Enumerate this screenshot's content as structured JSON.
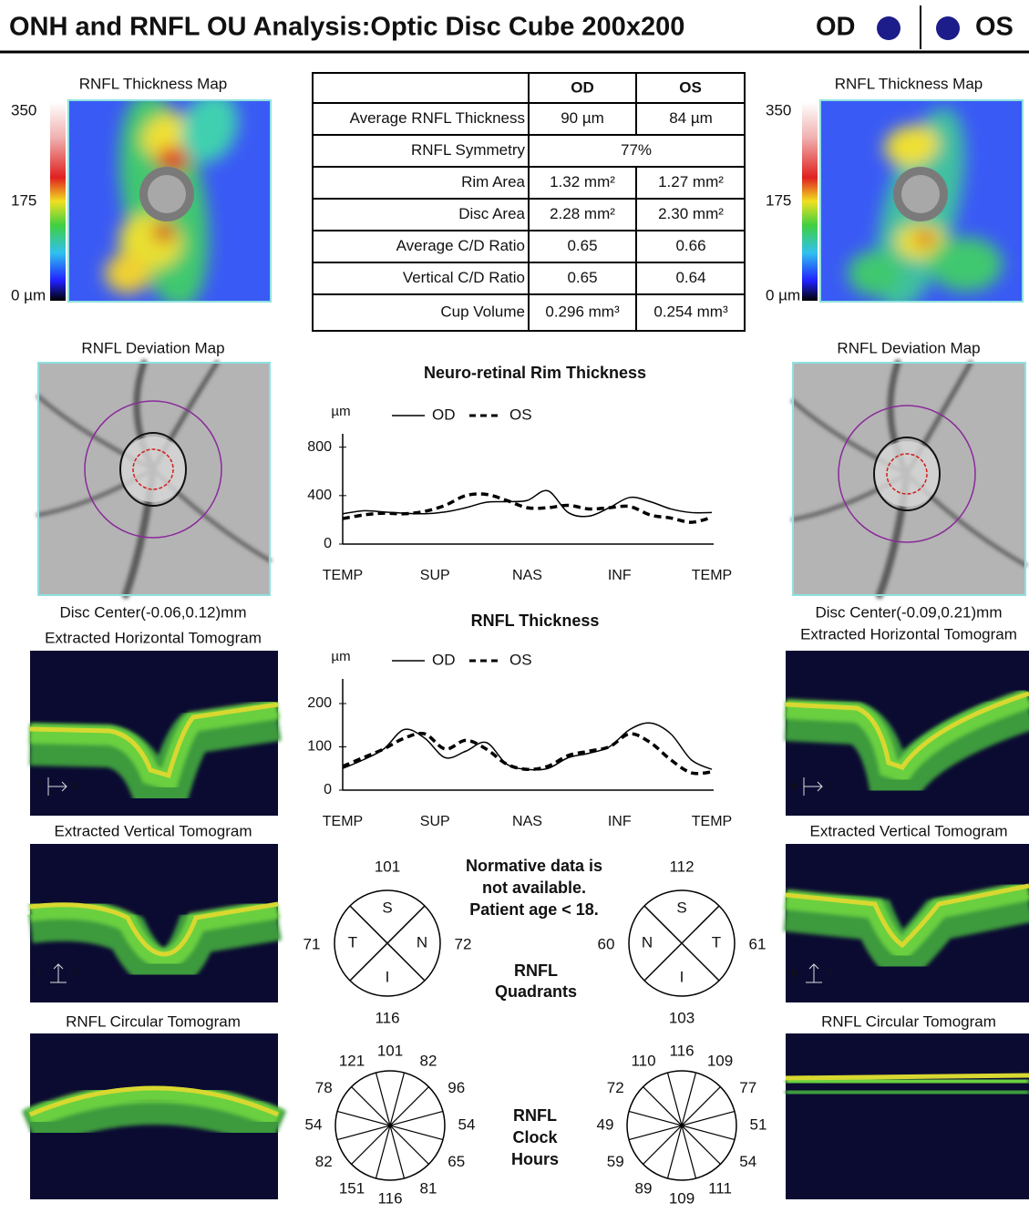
{
  "header": {
    "title": "ONH and RNFL OU Analysis:Optic Disc Cube 200x200",
    "od": "OD",
    "os": "OS"
  },
  "eyes": [
    {
      "thickness_map": {
        "title": "RNFL Thickness Map",
        "scale": [
          "350",
          "175",
          "0 µm"
        ]
      },
      "deviation_map": {
        "title": "RNFL Deviation Map"
      },
      "disc_center": "Disc Center(-0.06,0.12)mm",
      "horizontal_tomogram": {
        "title": "Extracted Horizontal Tomogram",
        "orientation": [
          "T",
          "N"
        ]
      },
      "vertical_tomogram": {
        "title": "Extracted Vertical Tomogram",
        "orientation": [
          "T",
          "N"
        ]
      },
      "circular_tomogram": {
        "title": "RNFL Circular Tomogram"
      }
    },
    {
      "thickness_map": {
        "title": "RNFL Thickness Map",
        "scale": [
          "350",
          "175",
          "0 µm"
        ]
      },
      "deviation_map": {
        "title": "RNFL Deviation Map"
      },
      "disc_center": "Disc Center(-0.09,0.21)mm",
      "horizontal_tomogram": {
        "title": "Extracted Horizontal Tomogram",
        "orientation": [
          "N",
          "T"
        ]
      },
      "vertical_tomogram": {
        "title": "Extracted Vertical Tomogram",
        "orientation": [
          "N",
          "T"
        ]
      },
      "circular_tomogram": {
        "title": "RNFL Circular Tomogram"
      }
    }
  ],
  "table": {
    "columns": [
      "OD",
      "OS"
    ],
    "rows": [
      [
        "Average RNFL Thickness",
        "90 µm",
        "84 µm"
      ],
      [
        "RNFL Symmetry",
        "77%"
      ],
      [
        "Rim Area",
        "1.32 mm²",
        "1.27 mm²"
      ],
      [
        "Disc Area",
        "2.28 mm²",
        "2.30 mm²"
      ],
      [
        "Average C/D Ratio",
        "0.65",
        "0.66"
      ],
      [
        "Vertical C/D Ratio",
        "0.65",
        "0.64"
      ],
      [
        "Cup Volume",
        "0.296 mm³",
        "0.254 mm³"
      ]
    ]
  },
  "rim_chart": {
    "type": "line",
    "title": "Neuro-retinal Rim Thickness",
    "y_unit": "µm",
    "legend": true,
    "x": [
      0,
      20,
      40,
      60,
      80,
      100,
      120,
      140,
      160,
      180,
      200,
      220,
      240,
      260,
      280,
      300,
      320,
      340,
      360
    ],
    "series": [
      {
        "name": "OD",
        "color": "#000000",
        "dashed": false,
        "values": [
          250,
          275,
          265,
          255,
          250,
          265,
          300,
          345,
          350,
          360,
          440,
          260,
          230,
          300,
          385,
          350,
          290,
          260,
          260
        ]
      },
      {
        "name": "OS",
        "color": "#000000",
        "dashed": true,
        "values": [
          210,
          240,
          255,
          250,
          270,
          320,
          400,
          410,
          360,
          300,
          300,
          320,
          290,
          300,
          310,
          240,
          215,
          180,
          220
        ]
      }
    ],
    "xlim": [
      0,
      360
    ],
    "xticks": [
      {
        "value": 0,
        "label": "TEMP"
      },
      {
        "value": 90,
        "label": "SUP"
      },
      {
        "value": 180,
        "label": "NAS"
      },
      {
        "value": 270,
        "label": "INF"
      },
      {
        "value": 360,
        "label": "TEMP"
      }
    ],
    "ylim": [
      0,
      850
    ],
    "yticks": [
      0,
      400,
      800
    ]
  },
  "rnfl_chart": {
    "type": "line",
    "title": "RNFL Thickness",
    "y_unit": "µm",
    "legend": true,
    "x": [
      0,
      20,
      40,
      60,
      80,
      100,
      120,
      140,
      160,
      180,
      200,
      220,
      240,
      260,
      280,
      300,
      320,
      340,
      360
    ],
    "series": [
      {
        "name": "OD",
        "color": "#000000",
        "dashed": false,
        "values": [
          50,
          70,
          95,
          140,
          120,
          75,
          90,
          110,
          60,
          48,
          50,
          75,
          85,
          100,
          140,
          155,
          130,
          70,
          48
        ]
      },
      {
        "name": "OS",
        "color": "#000000",
        "dashed": true,
        "values": [
          55,
          75,
          95,
          120,
          130,
          95,
          115,
          95,
          60,
          48,
          55,
          80,
          90,
          100,
          130,
          110,
          70,
          40,
          42
        ]
      }
    ],
    "xlim": [
      0,
      360
    ],
    "xticks": [
      {
        "value": 0,
        "label": "TEMP"
      },
      {
        "value": 90,
        "label": "SUP"
      },
      {
        "value": 180,
        "label": "NAS"
      },
      {
        "value": 270,
        "label": "INF"
      },
      {
        "value": 360,
        "label": "TEMP"
      }
    ],
    "ylim": [
      0,
      240
    ],
    "yticks": [
      0,
      100,
      200
    ]
  },
  "note": [
    "Normative data is",
    "not available.",
    "Patient age < 18."
  ],
  "quadrants": {
    "title": [
      "RNFL",
      "Quadrants"
    ],
    "eyes": [
      {
        "sectors": [
          {
            "letter": "S",
            "value": "101"
          },
          {
            "letter": "N",
            "value": "72"
          },
          {
            "letter": "I",
            "value": "116"
          },
          {
            "letter": "T",
            "value": "71"
          }
        ]
      },
      {
        "sectors": [
          {
            "letter": "S",
            "value": "112"
          },
          {
            "letter": "T",
            "value": "61"
          },
          {
            "letter": "I",
            "value": "103"
          },
          {
            "letter": "N",
            "value": "60"
          }
        ]
      }
    ]
  },
  "clock_hours": {
    "title": [
      "RNFL",
      "Clock",
      "Hours"
    ],
    "eyes": [
      {
        "values": [
          "101",
          "82",
          "96",
          "54",
          "65",
          "81",
          "116",
          "151",
          "82",
          "54",
          "78",
          "121"
        ]
      },
      {
        "values": [
          "116",
          "109",
          "77",
          "51",
          "54",
          "111",
          "109",
          "89",
          "59",
          "49",
          "72",
          "110"
        ]
      }
    ]
  }
}
